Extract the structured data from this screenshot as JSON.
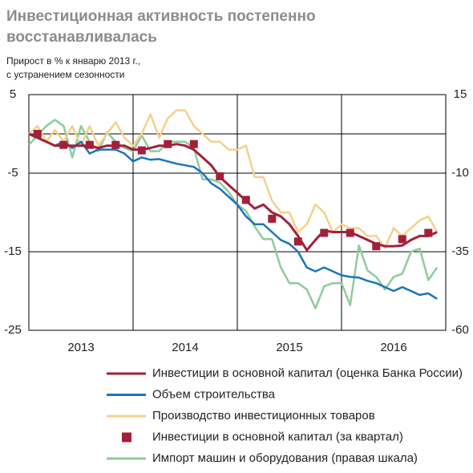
{
  "chart_data": {
    "type": "line",
    "title": [
      "Инвестиционная активность постепенно",
      "восстанавливалась"
    ],
    "subtitle": [
      "Прирост в % к январю 2013 г.,",
      "с устранением сезонности"
    ],
    "x": [
      2013,
      2013.083,
      2013.167,
      2013.25,
      2013.333,
      2013.417,
      2013.5,
      2013.583,
      2013.667,
      2013.75,
      2013.833,
      2013.917,
      2014,
      2014.083,
      2014.167,
      2014.25,
      2014.333,
      2014.417,
      2014.5,
      2014.583,
      2014.667,
      2014.75,
      2014.833,
      2014.917,
      2015,
      2015.083,
      2015.167,
      2015.25,
      2015.333,
      2015.417,
      2015.5,
      2015.583,
      2015.667,
      2015.75,
      2015.833,
      2015.917,
      2016,
      2016.083,
      2016.167,
      2016.25,
      2016.333,
      2016.417,
      2016.5,
      2016.583,
      2016.667,
      2016.75,
      2016.833,
      2016.917
    ],
    "xlim": [
      2013,
      2017
    ],
    "xticks": [
      {
        "value": 2013.5,
        "label": "2013"
      },
      {
        "value": 2014.5,
        "label": "2014"
      },
      {
        "value": 2015.5,
        "label": "2015"
      },
      {
        "value": 2016.5,
        "label": "2016"
      }
    ],
    "xgrid": [
      2014,
      2015,
      2016
    ],
    "ylim": [
      -25,
      5
    ],
    "yticks": [
      5,
      -5,
      -15,
      -25
    ],
    "y2lim": [
      -60,
      15
    ],
    "y2ticks": [
      15,
      -10,
      -35,
      -60
    ],
    "grid": true,
    "series": [
      {
        "name": "Инвестиции в основной капитал (оценка Банка России)",
        "color": "#a3203a",
        "values": [
          0,
          -0.5,
          -1,
          -1.5,
          -1.5,
          -1.5,
          -1.5,
          -1.5,
          -1.8,
          -1.5,
          -1.5,
          -1.5,
          -2,
          -2,
          -1.8,
          -1.5,
          -1.5,
          -1.3,
          -1.5,
          -2,
          -3,
          -4,
          -5.5,
          -6.5,
          -7.5,
          -8.5,
          -9.5,
          -9,
          -10,
          -10.5,
          -11.5,
          -13,
          -14.8,
          -13.5,
          -12.3,
          -12.5,
          -12.5,
          -12.5,
          -13,
          -13.5,
          -14,
          -14.3,
          -14.3,
          -14.2,
          -13.5,
          -13,
          -13,
          -12.5
        ]
      },
      {
        "name": "Объем строительства",
        "color": "#1a75bb",
        "values": [
          0,
          -0.5,
          -1,
          -1.5,
          -1,
          -1.8,
          -1,
          -2.5,
          -2,
          -2,
          -2,
          -2.5,
          -3.5,
          -3,
          -3.3,
          -3.2,
          -3.5,
          -3.8,
          -4,
          -4.2,
          -5,
          -6.3,
          -7,
          -8,
          -9,
          -10.5,
          -11.5,
          -11.5,
          -12.5,
          -13.5,
          -14,
          -15,
          -17,
          -17.5,
          -17,
          -17.5,
          -18,
          -18.2,
          -18.3,
          -18.7,
          -19,
          -19.5,
          -20,
          -19.5,
          -20,
          -20.5,
          -20.3,
          -21
        ]
      },
      {
        "name": "Производство инвестиционных товаров",
        "color": "#f5d08b",
        "values": [
          0,
          1,
          -1,
          0.5,
          -1,
          1,
          -1.5,
          1,
          -1.5,
          0,
          1.5,
          -0.5,
          -1.5,
          0,
          2.5,
          -0.5,
          2,
          3,
          3,
          1,
          0,
          -1,
          -1,
          -2,
          -2,
          -1.5,
          -5.5,
          -5.5,
          -8.5,
          -10,
          -10,
          -12.5,
          -11.5,
          -9,
          -10,
          -12.5,
          -11.5,
          -12,
          -12,
          -13,
          -13,
          -14.5,
          -12,
          -13,
          -12,
          -11,
          -10.5,
          -12.5
        ]
      },
      {
        "name": "Инвестиции в основной капитал (за квартал)",
        "color": "#a3203a",
        "marker": "square",
        "x": [
          2013.083,
          2013.333,
          2013.583,
          2013.833,
          2014.083,
          2014.333,
          2014.583,
          2014.833,
          2015.083,
          2015.333,
          2015.583,
          2015.833,
          2016.083,
          2016.333,
          2016.583,
          2016.833
        ],
        "values": [
          0,
          -1.4,
          -1.4,
          -1.4,
          -2.1,
          -1.3,
          -1.3,
          -5.4,
          -8.4,
          -10.8,
          -13.7,
          -12.6,
          -12.6,
          -14.3,
          -13.4,
          -12.6
        ]
      },
      {
        "name": "Импорт машин и оборудования (правая шкала)",
        "color": "#8fcb9b",
        "axis": "y2",
        "values": [
          -1,
          2,
          5,
          7,
          5,
          -5,
          5,
          0,
          -3,
          3,
          0,
          -2,
          -3,
          2,
          -3,
          -3,
          0,
          0,
          0,
          -2,
          -12,
          -12,
          -13,
          -16,
          -20,
          -22,
          -27,
          -31,
          -31,
          -40,
          -45,
          -45,
          -47,
          -53,
          -46,
          -45,
          -45,
          -52,
          -33,
          -41,
          -43,
          -47,
          -43,
          -42,
          -35,
          -34,
          -44,
          -40
        ]
      }
    ]
  }
}
